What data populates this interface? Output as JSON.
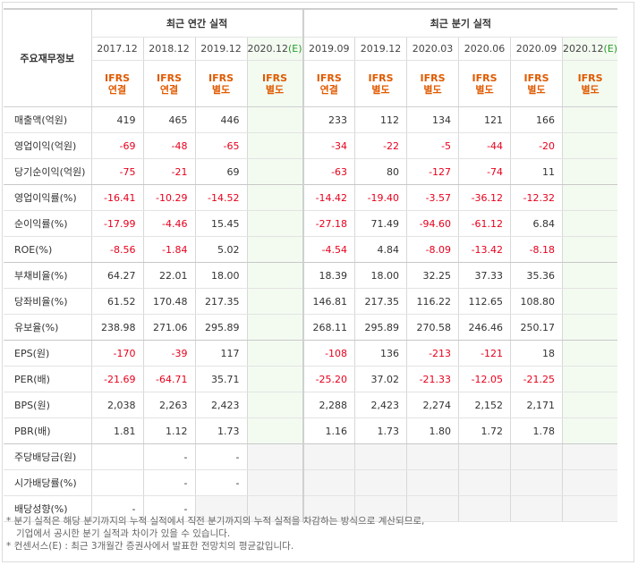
{
  "corner_label": "주요재무정보",
  "groups": {
    "annual": "최근 연간 실적",
    "quarterly": "최근 분기 실적"
  },
  "periods": [
    {
      "date": "2017.12",
      "est": "",
      "acct1": "IFRS",
      "acct2": "연결"
    },
    {
      "date": "2018.12",
      "est": "",
      "acct1": "IFRS",
      "acct2": "연결"
    },
    {
      "date": "2019.12",
      "est": "",
      "acct1": "IFRS",
      "acct2": "별도"
    },
    {
      "date": "2020.12",
      "est": "(E)",
      "acct1": "IFRS",
      "acct2": "별도"
    },
    {
      "date": "2019.09",
      "est": "",
      "acct1": "IFRS",
      "acct2": "연결"
    },
    {
      "date": "2019.12",
      "est": "",
      "acct1": "IFRS",
      "acct2": "별도"
    },
    {
      "date": "2020.03",
      "est": "",
      "acct1": "IFRS",
      "acct2": "별도"
    },
    {
      "date": "2020.06",
      "est": "",
      "acct1": "IFRS",
      "acct2": "별도"
    },
    {
      "date": "2020.09",
      "est": "",
      "acct1": "IFRS",
      "acct2": "별도"
    },
    {
      "date": "2020.12",
      "est": "(E)",
      "acct1": "IFRS",
      "acct2": "별도"
    }
  ],
  "rows": [
    {
      "label": "매출액(억원)",
      "values": [
        "419",
        "465",
        "446",
        "",
        "233",
        "112",
        "134",
        "121",
        "166",
        ""
      ]
    },
    {
      "label": "영업이익(억원)",
      "values": [
        "-69",
        "-48",
        "-65",
        "",
        "-34",
        "-22",
        "-5",
        "-44",
        "-20",
        ""
      ]
    },
    {
      "label": "당기순이익(억원)",
      "values": [
        "-75",
        "-21",
        "69",
        "",
        "-63",
        "80",
        "-127",
        "-74",
        "11",
        ""
      ]
    },
    {
      "label": "영업이익률(%)",
      "values": [
        "-16.41",
        "-10.29",
        "-14.52",
        "",
        "-14.42",
        "-19.40",
        "-3.57",
        "-36.12",
        "-12.32",
        ""
      ]
    },
    {
      "label": "순이익률(%)",
      "values": [
        "-17.99",
        "-4.46",
        "15.45",
        "",
        "-27.18",
        "71.49",
        "-94.60",
        "-61.12",
        "6.84",
        ""
      ]
    },
    {
      "label": "ROE(%)",
      "values": [
        "-8.56",
        "-1.84",
        "5.02",
        "",
        "-4.54",
        "4.84",
        "-8.09",
        "-13.42",
        "-8.18",
        ""
      ]
    },
    {
      "label": "부채비율(%)",
      "values": [
        "64.27",
        "22.01",
        "18.00",
        "",
        "18.39",
        "18.00",
        "32.25",
        "37.33",
        "35.36",
        ""
      ]
    },
    {
      "label": "당좌비율(%)",
      "values": [
        "61.52",
        "170.48",
        "217.35",
        "",
        "146.81",
        "217.35",
        "116.22",
        "112.65",
        "108.80",
        ""
      ]
    },
    {
      "label": "유보율(%)",
      "values": [
        "238.98",
        "271.06",
        "295.89",
        "",
        "268.11",
        "295.89",
        "270.58",
        "246.46",
        "250.17",
        ""
      ]
    },
    {
      "label": "EPS(원)",
      "values": [
        "-170",
        "-39",
        "117",
        "",
        "-108",
        "136",
        "-213",
        "-121",
        "18",
        ""
      ]
    },
    {
      "label": "PER(배)",
      "values": [
        "-21.69",
        "-64.71",
        "35.71",
        "",
        "-25.20",
        "37.02",
        "-21.33",
        "-12.05",
        "-21.25",
        ""
      ]
    },
    {
      "label": "BPS(원)",
      "values": [
        "2,038",
        "2,263",
        "2,423",
        "",
        "2,288",
        "2,423",
        "2,274",
        "2,152",
        "2,171",
        ""
      ]
    },
    {
      "label": "PBR(배)",
      "values": [
        "1.81",
        "1.12",
        "1.73",
        "",
        "1.16",
        "1.73",
        "1.80",
        "1.72",
        "1.78",
        ""
      ]
    },
    {
      "label": "주당배당금(원)",
      "values": [
        "",
        "-",
        "-",
        "",
        "",
        "",
        "",
        "",
        "",
        ""
      ]
    },
    {
      "label": "시가배당률(%)",
      "values": [
        "",
        "-",
        "-",
        "",
        "",
        "",
        "",
        "",
        "",
        ""
      ]
    },
    {
      "label": "배당성향(%)",
      "values": [
        "-",
        "-",
        "",
        "",
        "",
        "",
        "",
        "",
        "",
        ""
      ]
    }
  ],
  "notes": [
    "* 분기 실적은 해당 분기까지의 누적 실적에서 직전 분기까지의 누적 실적을 차감하는 방식으로 계산되므로,",
    "기업에서 공시한 분기 실적과 차이가 있을 수 있습니다.",
    "* 컨센서스(E) : 최근 3개월간 증권사에서 발표한 전망치의 평균값입니다."
  ],
  "colors": {
    "negative": "#e8001c",
    "account": "#e05a00",
    "estimate_bg": "#f3fbf1"
  }
}
